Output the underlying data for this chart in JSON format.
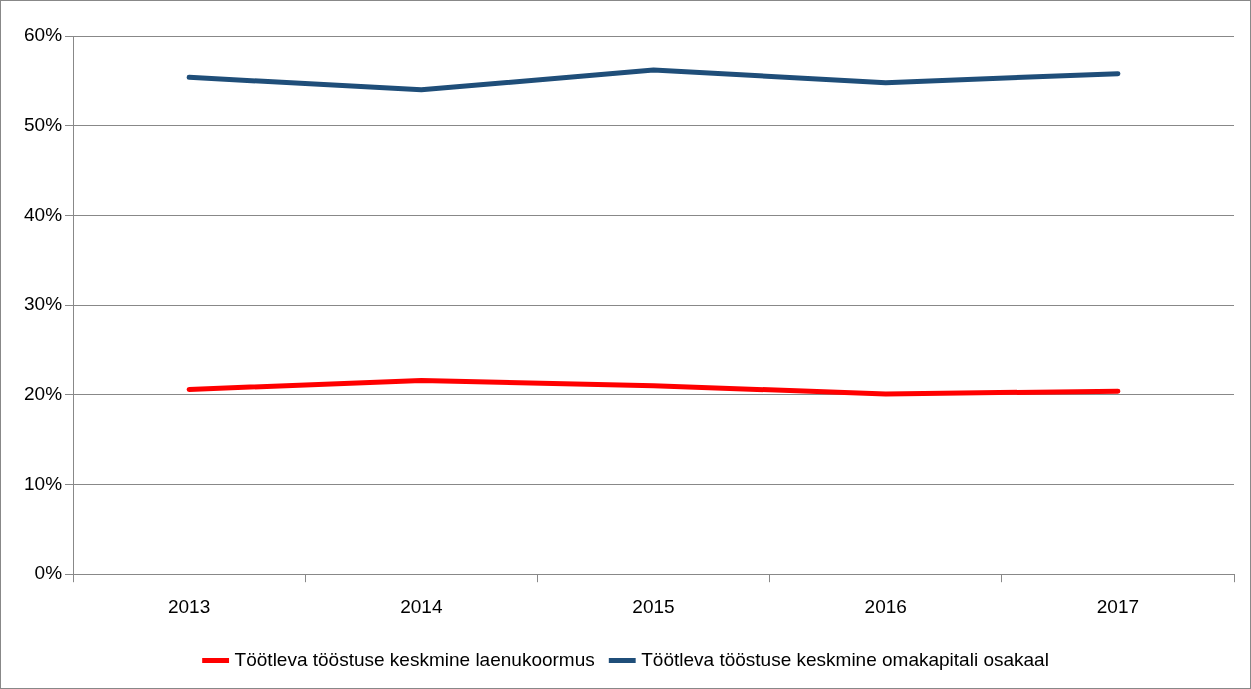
{
  "chart_data": {
    "type": "line",
    "categories": [
      "2013",
      "2014",
      "2015",
      "2016",
      "2017"
    ],
    "series": [
      {
        "name": "Töötleva tööstuse keskmine laenukoormus",
        "color": "#ff0000",
        "values": [
          20.6,
          21.6,
          21.0,
          20.1,
          20.4
        ]
      },
      {
        "name": "Töötleva tööstuse keskmine omakapitali osakaal",
        "color": "#1f4e79",
        "values": [
          55.4,
          54.0,
          56.2,
          54.8,
          55.8
        ]
      }
    ],
    "ylim": [
      0,
      60
    ],
    "yticks": [
      {
        "value": 0,
        "label": "0%"
      },
      {
        "value": 10,
        "label": "10%"
      },
      {
        "value": 20,
        "label": "20%"
      },
      {
        "value": 30,
        "label": "30%"
      },
      {
        "value": 40,
        "label": "40%"
      },
      {
        "value": 50,
        "label": "50%"
      },
      {
        "value": 60,
        "label": "60%"
      }
    ],
    "grid": "y",
    "legend": "bottom",
    "marker": "none",
    "line_style": "solid"
  }
}
